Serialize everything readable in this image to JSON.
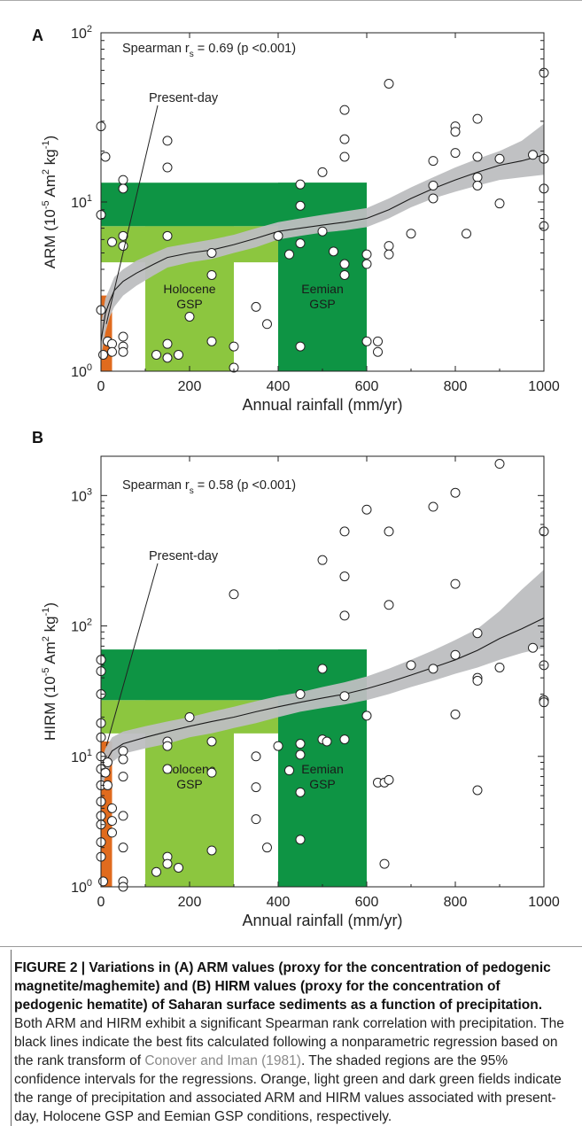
{
  "chart_data": [
    {
      "panel": "A",
      "type": "scatter",
      "xlabel": "Annual rainfall (mm/yr)",
      "ylabel_main": "ARM (10",
      "ylabel_exp1": "-5",
      "ylabel_mid": " Am",
      "ylabel_exp2": "2",
      "ylabel_mid2": " kg",
      "ylabel_exp3": "-1",
      "ylabel_end": ")",
      "xlim": [
        0,
        1000
      ],
      "ylim": [
        1,
        100
      ],
      "yscale": "log",
      "x_ticks": [
        0,
        200,
        400,
        600,
        800,
        1000
      ],
      "x_tick_labels": [
        "0",
        "200",
        "400",
        "600",
        "800",
        "1000"
      ],
      "y_tick_labels": [
        {
          "base": "10",
          "exp": "0",
          "value": 1
        },
        {
          "base": "10",
          "exp": "1",
          "value": 10
        },
        {
          "base": "10",
          "exp": "2",
          "value": 100
        }
      ],
      "stat_text": "Spearman r",
      "stat_sub": "s",
      "stat_rest": " = 0.69 (p <0.001)",
      "annotation": "Present-day",
      "annotation_target": [
        12,
        1.9
      ],
      "regions": [
        {
          "name": "orange",
          "color": "#e06b1e",
          "x": [
            0,
            25
          ],
          "y": [
            1,
            2.8
          ]
        },
        {
          "name": "light-green",
          "color": "#8cc63f",
          "x": [
            0,
            600
          ],
          "y": [
            4.4,
            7.2
          ],
          "alpha": 1
        },
        {
          "name": "holocene-gsp",
          "color": "#8cc63f",
          "x": [
            100,
            300
          ],
          "y": [
            1,
            7.2
          ],
          "label1": "Holocene",
          "label2": "GSP"
        },
        {
          "name": "dark-green-band",
          "color": "#0e9444",
          "x": [
            0,
            600
          ],
          "y": [
            7.2,
            13
          ]
        },
        {
          "name": "eemian-gsp",
          "color": "#0e9444",
          "x": [
            400,
            600
          ],
          "y": [
            1,
            13
          ],
          "label1": "Eemian",
          "label2": "GSP"
        }
      ],
      "fit": {
        "x": [
          0,
          10,
          20,
          30,
          50,
          80,
          120,
          150,
          200,
          250,
          300,
          350,
          400,
          450,
          500,
          550,
          600,
          650,
          700,
          750,
          800,
          850,
          900,
          950,
          1000
        ],
        "y": [
          1.5,
          2.2,
          2.6,
          3.0,
          3.4,
          3.8,
          4.3,
          4.7,
          5.0,
          5.2,
          5.6,
          6.1,
          6.7,
          7.0,
          7.3,
          7.6,
          8.0,
          9.0,
          10.5,
          12.0,
          13.5,
          15.0,
          16.5,
          17.5,
          19.0
        ],
        "lower": [
          1.2,
          1.7,
          2.1,
          2.4,
          2.8,
          3.2,
          3.7,
          4.1,
          4.4,
          4.6,
          5.0,
          5.4,
          6.0,
          6.3,
          6.6,
          6.8,
          7.1,
          8.0,
          9.3,
          10.5,
          11.5,
          12.5,
          13.5,
          14.0,
          14.5
        ],
        "upper": [
          1.9,
          2.7,
          3.1,
          3.6,
          4.0,
          4.5,
          5.0,
          5.4,
          5.7,
          6.0,
          6.4,
          7.0,
          7.6,
          8.0,
          8.4,
          8.8,
          9.2,
          10.5,
          12.2,
          14.0,
          16.0,
          18.0,
          20.0,
          23.0,
          29.0
        ]
      },
      "points": [
        [
          0,
          28
        ],
        [
          0,
          8.4
        ],
        [
          0,
          2.3
        ],
        [
          5,
          1.25
        ],
        [
          10,
          18.5
        ],
        [
          15,
          1.5
        ],
        [
          25,
          1.45
        ],
        [
          25,
          1.3
        ],
        [
          25,
          5.8
        ],
        [
          50,
          13.5
        ],
        [
          50,
          12
        ],
        [
          50,
          6.3
        ],
        [
          50,
          5.5
        ],
        [
          50,
          1.6
        ],
        [
          50,
          1.4
        ],
        [
          50,
          1.3
        ],
        [
          150,
          23
        ],
        [
          150,
          16
        ],
        [
          150,
          6.3
        ],
        [
          150,
          1.45
        ],
        [
          150,
          1.2
        ],
        [
          125,
          1.25
        ],
        [
          175,
          1.25
        ],
        [
          200,
          2.1
        ],
        [
          250,
          5
        ],
        [
          250,
          3.7
        ],
        [
          250,
          1.5
        ],
        [
          300,
          1.4
        ],
        [
          300,
          1.05
        ],
        [
          350,
          2.4
        ],
        [
          375,
          1.9
        ],
        [
          400,
          6.3
        ],
        [
          425,
          4.9
        ],
        [
          450,
          12.7
        ],
        [
          450,
          9.5
        ],
        [
          450,
          5.7
        ],
        [
          450,
          1.4
        ],
        [
          500,
          15
        ],
        [
          500,
          6.7
        ],
        [
          525,
          5.1
        ],
        [
          550,
          35
        ],
        [
          550,
          23.5
        ],
        [
          550,
          18.5
        ],
        [
          550,
          4.3
        ],
        [
          550,
          3.7
        ],
        [
          600,
          4.9
        ],
        [
          600,
          4.3
        ],
        [
          600,
          1.5
        ],
        [
          625,
          1.5
        ],
        [
          625,
          1.3
        ],
        [
          650,
          50
        ],
        [
          650,
          5.5
        ],
        [
          650,
          4.9
        ],
        [
          700,
          6.5
        ],
        [
          750,
          17.5
        ],
        [
          750,
          12.5
        ],
        [
          750,
          10.5
        ],
        [
          800,
          28
        ],
        [
          800,
          26
        ],
        [
          800,
          19.5
        ],
        [
          825,
          6.5
        ],
        [
          850,
          31
        ],
        [
          850,
          18.5
        ],
        [
          850,
          14
        ],
        [
          850,
          12.5
        ],
        [
          900,
          18
        ],
        [
          900,
          9.8
        ],
        [
          975,
          19
        ],
        [
          1000,
          58
        ],
        [
          1000,
          18
        ],
        [
          1000,
          12
        ],
        [
          1000,
          7.2
        ]
      ]
    },
    {
      "panel": "B",
      "type": "scatter",
      "xlabel": "Annual rainfall (mm/yr)",
      "ylabel_main": "HIRM (10",
      "ylabel_exp1": "-5",
      "ylabel_mid": " Am",
      "ylabel_exp2": "2",
      "ylabel_mid2": " kg",
      "ylabel_exp3": "-1",
      "ylabel_end": ")",
      "xlim": [
        0,
        1000
      ],
      "ylim": [
        1,
        2000
      ],
      "yscale": "log",
      "x_ticks": [
        0,
        200,
        400,
        600,
        800,
        1000
      ],
      "x_tick_labels": [
        "0",
        "200",
        "400",
        "600",
        "800",
        "1000"
      ],
      "y_tick_labels": [
        {
          "base": "10",
          "exp": "0",
          "value": 1
        },
        {
          "base": "10",
          "exp": "1",
          "value": 10
        },
        {
          "base": "10",
          "exp": "2",
          "value": 100
        },
        {
          "base": "10",
          "exp": "3",
          "value": 1000
        }
      ],
      "stat_text": "Spearman r",
      "stat_sub": "s",
      "stat_rest": " = 0.58 (p <0.001)",
      "annotation": "Present-day",
      "annotation_target": [
        12,
        12
      ],
      "regions": [
        {
          "name": "orange",
          "color": "#e06b1e",
          "x": [
            0,
            25
          ],
          "y": [
            1,
            13
          ]
        },
        {
          "name": "light-green",
          "color": "#8cc63f",
          "x": [
            0,
            600
          ],
          "y": [
            15,
            27
          ]
        },
        {
          "name": "holocene-gsp",
          "color": "#8cc63f",
          "x": [
            100,
            300
          ],
          "y": [
            1,
            27
          ],
          "label1": "Holocene",
          "label2": "GSP"
        },
        {
          "name": "dark-green-band",
          "color": "#0e9444",
          "x": [
            0,
            600
          ],
          "y": [
            27,
            66
          ]
        },
        {
          "name": "eemian-gsp",
          "color": "#0e9444",
          "x": [
            400,
            600
          ],
          "y": [
            1,
            66
          ],
          "label1": "Eemian",
          "label2": "GSP"
        }
      ],
      "fit": {
        "x": [
          0,
          10,
          25,
          50,
          100,
          150,
          200,
          250,
          300,
          350,
          400,
          450,
          500,
          550,
          600,
          650,
          700,
          750,
          800,
          850,
          900,
          950,
          1000
        ],
        "y": [
          7,
          9,
          11,
          12.5,
          14,
          15.5,
          17,
          18.5,
          20,
          22,
          24,
          26,
          28,
          30,
          33,
          37,
          42,
          48,
          55,
          65,
          80,
          95,
          115
        ],
        "lower": [
          5.5,
          7,
          9,
          10.5,
          11.5,
          12.5,
          14,
          15,
          16.5,
          18,
          20,
          22,
          23.5,
          25,
          27,
          30,
          34,
          38,
          43,
          48,
          55,
          62,
          68
        ],
        "upper": [
          9,
          11.5,
          14,
          15.5,
          17,
          18.5,
          20,
          22,
          24,
          26.5,
          29,
          31,
          34,
          37,
          41,
          47,
          55,
          65,
          78,
          95,
          130,
          190,
          270
        ]
      },
      "points": [
        [
          0,
          55
        ],
        [
          0,
          45
        ],
        [
          0,
          30
        ],
        [
          0,
          18
        ],
        [
          0,
          14
        ],
        [
          0,
          10
        ],
        [
          0,
          8
        ],
        [
          0,
          6
        ],
        [
          0,
          4.5
        ],
        [
          0,
          3.5
        ],
        [
          0,
          3
        ],
        [
          0,
          2.2
        ],
        [
          0,
          1.7
        ],
        [
          5,
          1.1
        ],
        [
          10,
          7.5
        ],
        [
          15,
          9
        ],
        [
          15,
          6
        ],
        [
          25,
          4
        ],
        [
          25,
          2.6
        ],
        [
          25,
          3.2
        ],
        [
          50,
          11
        ],
        [
          50,
          9.5
        ],
        [
          50,
          7
        ],
        [
          50,
          3.5
        ],
        [
          50,
          2
        ],
        [
          50,
          1.1
        ],
        [
          50,
          1
        ],
        [
          125,
          1.3
        ],
        [
          150,
          13
        ],
        [
          150,
          12
        ],
        [
          150,
          8
        ],
        [
          150,
          1.7
        ],
        [
          150,
          1.5
        ],
        [
          175,
          1.4
        ],
        [
          200,
          20
        ],
        [
          250,
          13
        ],
        [
          250,
          7.5
        ],
        [
          250,
          1.9
        ],
        [
          300,
          175
        ],
        [
          350,
          10
        ],
        [
          350,
          5.8
        ],
        [
          350,
          3.3
        ],
        [
          375,
          2
        ],
        [
          400,
          12
        ],
        [
          425,
          7.8
        ],
        [
          450,
          30
        ],
        [
          450,
          12.5
        ],
        [
          450,
          10.3
        ],
        [
          450,
          5.3
        ],
        [
          450,
          2.3
        ],
        [
          500,
          320
        ],
        [
          500,
          47
        ],
        [
          500,
          13.5
        ],
        [
          510,
          13
        ],
        [
          550,
          530
        ],
        [
          550,
          240
        ],
        [
          550,
          120
        ],
        [
          550,
          29
        ],
        [
          550,
          13.5
        ],
        [
          600,
          780
        ],
        [
          600,
          20.5
        ],
        [
          625,
          6.3
        ],
        [
          640,
          6.3
        ],
        [
          640,
          1.5
        ],
        [
          650,
          530
        ],
        [
          650,
          145
        ],
        [
          650,
          6.6
        ],
        [
          700,
          50
        ],
        [
          750,
          820
        ],
        [
          750,
          47
        ],
        [
          800,
          1050
        ],
        [
          800,
          210
        ],
        [
          800,
          60
        ],
        [
          800,
          21
        ],
        [
          850,
          88
        ],
        [
          850,
          40
        ],
        [
          850,
          38
        ],
        [
          850,
          5.5
        ],
        [
          900,
          1750
        ],
        [
          900,
          48
        ],
        [
          975,
          68
        ],
        [
          1000,
          530
        ],
        [
          1000,
          50
        ],
        [
          1000,
          27
        ],
        [
          1000,
          26
        ]
      ]
    }
  ],
  "caption": {
    "bold": "FIGURE 2 | Variations in (A) ARM values (proxy for the concentration of pedogenic magnetite/maghemite) and (B) HIRM values (proxy for the concentration of pedogenic hematite) of Saharan surface sediments as a function of precipitation.",
    "text1": " Both ARM and HIRM exhibit a significant Spearman rank correlation with precipitation. The black lines indicate the best fits calculated following a nonparametric regression based on the rank transform of ",
    "ref": "Conover and Iman (1981)",
    "text2": ". The shaded regions are the 95% confidence intervals for the regressions. Orange, light green and dark green fields indicate the range of precipitation and associated ARM and HIRM values associated with present-day, Holocene GSP and Eemian GSP conditions, respectively."
  },
  "colors": {
    "ci_band": "#bdbec0",
    "fit_line": "#1a1a1a",
    "point_fill": "#ffffff",
    "point_stroke": "#222222"
  }
}
